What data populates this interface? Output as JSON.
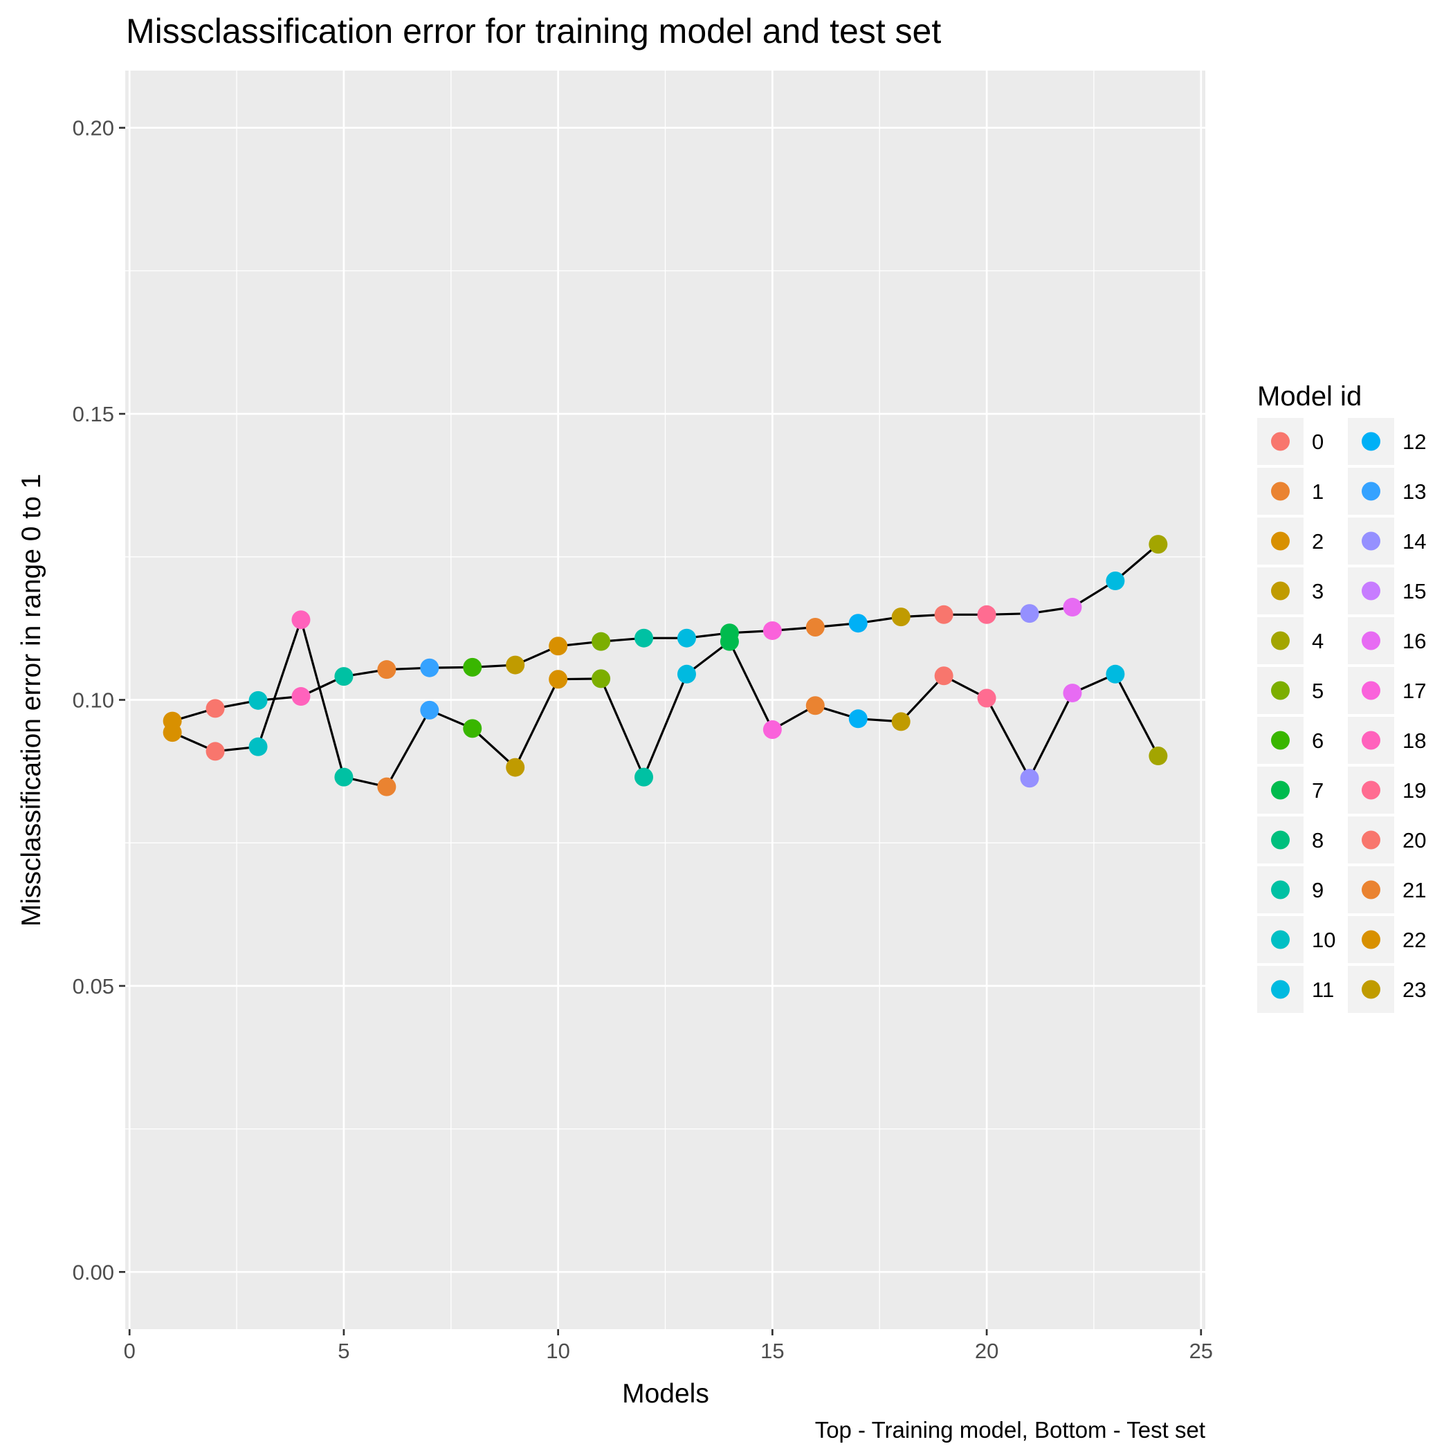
{
  "chart_data": {
    "type": "line",
    "title": "Missclassification error for training model and test set",
    "xlabel": "Models",
    "ylabel": "Missclassification error in range 0 to 1",
    "caption": "Top - Training model, Bottom - Test set",
    "xlim": [
      -0.1,
      25.1
    ],
    "ylim": [
      -0.01,
      0.21
    ],
    "x_ticks": [
      0,
      5,
      10,
      15,
      20,
      25
    ],
    "x_tick_labels": [
      "0",
      "5",
      "10",
      "15",
      "20",
      "25"
    ],
    "y_ticks": [
      0.0,
      0.05,
      0.1,
      0.15,
      0.2
    ],
    "y_tick_labels": [
      "0.00",
      "0.05",
      "0.10",
      "0.15",
      "0.20"
    ],
    "grid": true,
    "legend": {
      "title": "Model id",
      "position": "right",
      "labels": [
        "0",
        "1",
        "2",
        "3",
        "4",
        "5",
        "6",
        "7",
        "8",
        "9",
        "10",
        "11",
        "12",
        "13",
        "14",
        "15",
        "16",
        "17",
        "18",
        "19",
        "20",
        "21",
        "22",
        "23"
      ]
    },
    "palette": [
      "#F8766D",
      "#EA8331",
      "#D89000",
      "#C09B00",
      "#A3A500",
      "#7CAE00",
      "#39B600",
      "#00BB4E",
      "#00BF7D",
      "#00C1A3",
      "#00BFC4",
      "#00BAE0",
      "#00B0F6",
      "#35A2FF",
      "#9590FF",
      "#C77CFF",
      "#E76BF3",
      "#FA62DB",
      "#FF62BC",
      "#FF6C91",
      "#F8766D",
      "#EA8331",
      "#D89000",
      "#C09B00"
    ],
    "series": [
      {
        "name": "Training model",
        "x": [
          1,
          2,
          3,
          4,
          5,
          6,
          7,
          8,
          9,
          10,
          11,
          12,
          13,
          14,
          15,
          16,
          17,
          18,
          19,
          20,
          21,
          22,
          23,
          24
        ],
        "y": [
          0.0963,
          0.0985,
          0.0999,
          0.1006,
          0.1041,
          0.1053,
          0.1056,
          0.1057,
          0.1061,
          0.1094,
          0.1102,
          0.1108,
          0.1108,
          0.1117,
          0.1121,
          0.1127,
          0.1134,
          0.1145,
          0.1149,
          0.1149,
          0.1151,
          0.1162,
          0.1208,
          0.1272
        ],
        "model_id": [
          22,
          20,
          10,
          18,
          9,
          21,
          13,
          6,
          3,
          2,
          5,
          9,
          11,
          7,
          17,
          1,
          12,
          23,
          0,
          19,
          14,
          16,
          11,
          4
        ]
      },
      {
        "name": "Test set",
        "x": [
          1,
          2,
          3,
          4,
          5,
          6,
          7,
          8,
          9,
          10,
          11,
          12,
          13,
          14,
          15,
          16,
          17,
          18,
          19,
          20,
          21,
          22,
          23,
          24
        ],
        "y": [
          0.0943,
          0.091,
          0.0918,
          0.114,
          0.0865,
          0.0848,
          0.0982,
          0.095,
          0.0882,
          0.1036,
          0.1037,
          0.0865,
          0.1045,
          0.1102,
          0.0948,
          0.099,
          0.0967,
          0.0962,
          0.1042,
          0.1003,
          0.0863,
          0.1012,
          0.1045,
          0.0902
        ],
        "model_id": [
          22,
          20,
          10,
          18,
          9,
          21,
          13,
          6,
          3,
          2,
          5,
          9,
          11,
          7,
          17,
          1,
          12,
          23,
          0,
          19,
          14,
          16,
          11,
          4
        ]
      }
    ]
  }
}
